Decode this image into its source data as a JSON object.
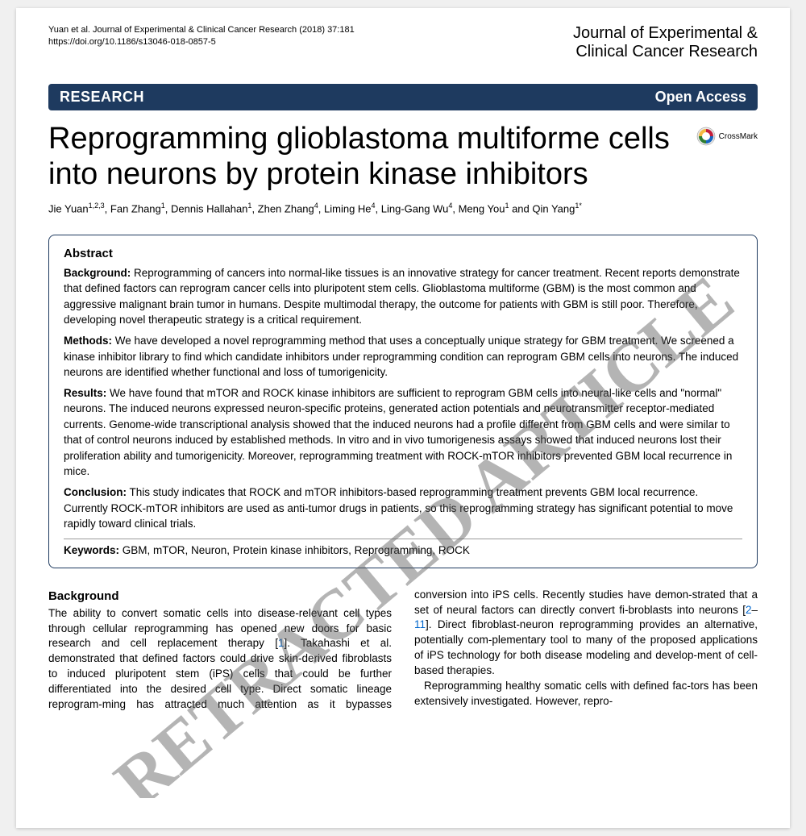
{
  "header": {
    "citation_line1": "Yuan et al. Journal of Experimental & Clinical Cancer Research  (2018) 37:181",
    "citation_line2": "https://doi.org/10.1186/s13046-018-0857-5",
    "journal_line1": "Journal of Experimental &",
    "journal_line2": "Clinical Cancer Research"
  },
  "banner": {
    "left": "RESEARCH",
    "right": "Open Access",
    "background_color": "#1e3a5f",
    "text_color": "#ffffff"
  },
  "title": "Reprogramming glioblastoma multiforme cells into neurons by protein kinase inhibitors",
  "crossmark": {
    "label": "CrossMark"
  },
  "authors_html": "Jie Yuan<sup>1,2,3</sup>, Fan Zhang<sup>1</sup>, Dennis Hallahan<sup>1</sup>, Zhen Zhang<sup>4</sup>, Liming He<sup>4</sup>, Ling-Gang Wu<sup>4</sup>, Meng You<sup>1</sup> and Qin Yang<sup>1*</sup>",
  "abstract": {
    "heading": "Abstract",
    "background": {
      "label": "Background:",
      "text": " Reprogramming of cancers into normal-like tissues is an innovative strategy for cancer treatment. Recent reports demonstrate that defined factors can reprogram cancer cells into pluripotent stem cells. Glioblastoma multiforme (GBM) is the most common and aggressive malignant brain tumor in humans. Despite multimodal therapy, the outcome for patients with GBM is still poor. Therefore, developing novel therapeutic strategy is a critical requirement."
    },
    "methods": {
      "label": "Methods:",
      "text": " We have developed a novel reprogramming method that uses a conceptually unique strategy for GBM treatment. We screened a kinase inhibitor library to find which candidate inhibitors under reprogramming condition can reprogram GBM cells into neurons. The induced neurons are identified whether functional and loss of tumorigenicity."
    },
    "results": {
      "label": "Results:",
      "text": " We have found that mTOR and ROCK kinase inhibitors are sufficient to reprogram GBM cells into neural-like cells and \"normal\" neurons. The induced neurons expressed neuron-specific proteins, generated action potentials and neurotransmitter receptor-mediated currents. Genome-wide transcriptional analysis showed that the induced neurons had a profile different from GBM cells and were similar to that of control neurons induced by established methods. In vitro and in vivo tumorigenesis assays showed that induced neurons lost their proliferation ability and tumorigenicity. Moreover, reprogramming treatment with ROCK-mTOR inhibitors prevented GBM local recurrence in mice."
    },
    "conclusion": {
      "label": "Conclusion:",
      "text": " This study indicates that ROCK and mTOR inhibitors-based reprogramming treatment prevents GBM local recurrence. Currently ROCK-mTOR inhibitors are used as anti-tumor drugs in patients, so this reprogramming strategy has significant potential to move rapidly toward clinical trials."
    },
    "keywords": {
      "label": "Keywords:",
      "text": " GBM, mTOR, Neuron, Protein kinase inhibitors, Reprogramming, ROCK"
    }
  },
  "body": {
    "heading": "Background",
    "col1_p1": "The ability to convert somatic cells into disease-relevant cell types through cellular reprogramming has opened new doors for basic research and cell replacement therapy [",
    "ref1": "1",
    "col1_p2": "]. Takahashi et al. demonstrated that defined factors could drive skin-derived fibroblasts to induced pluripotent stem (iPS) cells that could be further differentiated into the desired cell type. Direct somatic lineage reprogram-ming has attracted much attention as it bypasses",
    "col2_p1": "conversion into iPS cells. Recently studies have demon-strated that a set of neural factors can directly convert fi-broblasts into neurons [",
    "ref2a": "2",
    "ref2dash": "–",
    "ref2b": "11",
    "col2_p2": "]. Direct fibroblast-neuron reprogramming provides an alternative, potentially com-plementary tool to many of the proposed applications of iPS technology for both disease modeling and develop-ment of cell-based therapies.",
    "col2_p3": "Reprogramming healthy somatic cells with defined fac-tors has been extensively investigated. However, repro-"
  },
  "watermark": {
    "text": "RETRACTED ARTICLE",
    "color": "#5a5a5a",
    "opacity": 0.45,
    "rotation_deg": -40
  }
}
